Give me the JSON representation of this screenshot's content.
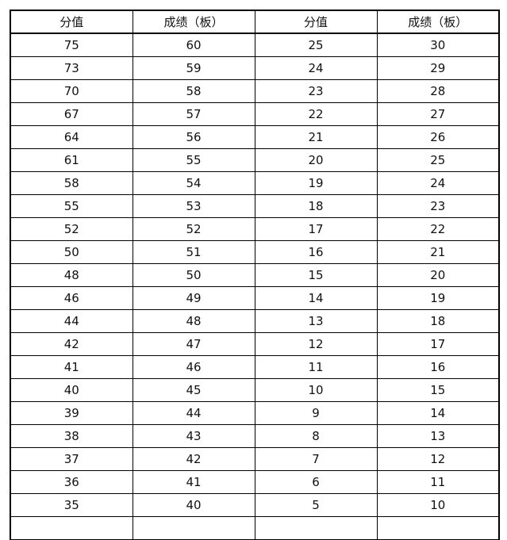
{
  "headers": [
    "分值",
    "成绩（板）",
    "分值",
    "成绩（板）"
  ],
  "rows": [
    [
      "75",
      "60",
      "25",
      "30"
    ],
    [
      "73",
      "59",
      "24",
      "29"
    ],
    [
      "70",
      "58",
      "23",
      "28"
    ],
    [
      "67",
      "57",
      "22",
      "27"
    ],
    [
      "64",
      "56",
      "21",
      "26"
    ],
    [
      "61",
      "55",
      "20",
      "25"
    ],
    [
      "58",
      "54",
      "19",
      "24"
    ],
    [
      "55",
      "53",
      "18",
      "23"
    ],
    [
      "52",
      "52",
      "17",
      "22"
    ],
    [
      "50",
      "51",
      "16",
      "21"
    ],
    [
      "48",
      "50",
      "15",
      "20"
    ],
    [
      "46",
      "49",
      "14",
      "19"
    ],
    [
      "44",
      "48",
      "13",
      "18"
    ],
    [
      "42",
      "47",
      "12",
      "17"
    ],
    [
      "41",
      "46",
      "11",
      "16"
    ],
    [
      "40",
      "45",
      "10",
      "15"
    ],
    [
      "39",
      "44",
      "9",
      "14"
    ],
    [
      "38",
      "43",
      "8",
      "13"
    ],
    [
      "37",
      "42",
      "7",
      "12"
    ],
    [
      "36",
      "41",
      "6",
      "11"
    ],
    [
      "35",
      "40",
      "5",
      "10"
    ],
    [
      "",
      "",
      "",
      ""
    ]
  ]
}
